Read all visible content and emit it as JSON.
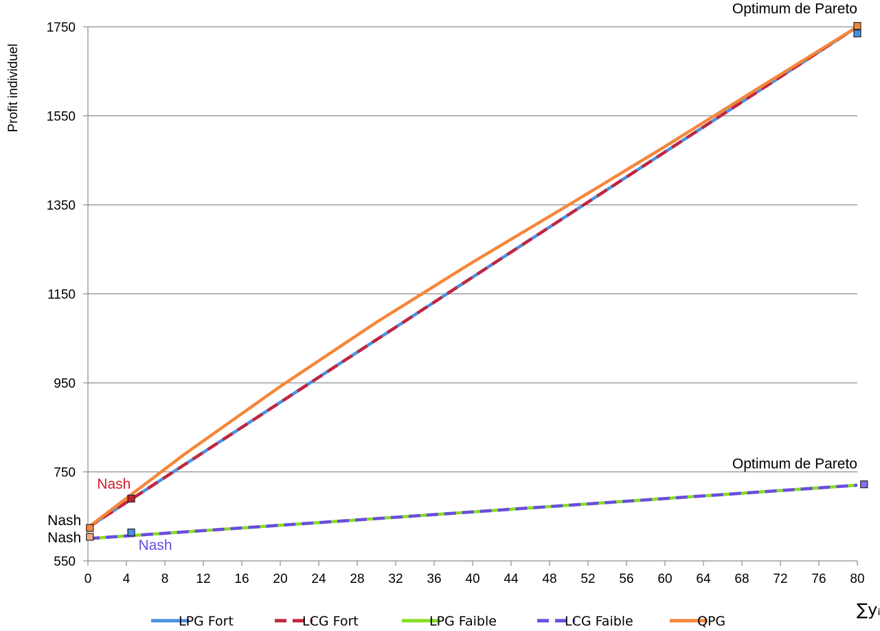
{
  "chart_data": {
    "type": "line",
    "ylabel": "Profit individuel",
    "xlabel": "∑yᵢ",
    "xlim": [
      0,
      80
    ],
    "ylim": [
      550,
      1750
    ],
    "x_ticks": [
      "0",
      "4",
      "8",
      "12",
      "16",
      "20",
      "24",
      "28",
      "32",
      "36",
      "40",
      "44",
      "48",
      "52",
      "56",
      "60",
      "64",
      "68",
      "72",
      "76",
      "80"
    ],
    "y_ticks": [
      "550",
      "750",
      "950",
      "1150",
      "1350",
      "1550",
      "1750"
    ],
    "grid": "horizontal",
    "legend_position": "bottom",
    "series": [
      {
        "name": "LPG Fort",
        "color": "#4a90e2",
        "dash": "solid",
        "x": [
          0,
          80
        ],
        "y": [
          625,
          1750
        ]
      },
      {
        "name": "LCG Fort",
        "color": "#c0263f",
        "dash": "dashed",
        "x": [
          0,
          80
        ],
        "y": [
          625,
          1750
        ]
      },
      {
        "name": "LPG Faible",
        "color": "#88dd22",
        "dash": "solid",
        "x": [
          0,
          80
        ],
        "y": [
          600,
          720
        ]
      },
      {
        "name": "LCG Faible",
        "color": "#6a4ce0",
        "dash": "dashed",
        "x": [
          0,
          80
        ],
        "y": [
          600,
          720
        ]
      },
      {
        "name": "QPG",
        "color": "#f5873a",
        "dash": "solid",
        "x": [
          0,
          10,
          20,
          30,
          40,
          50,
          60,
          70,
          80
        ],
        "y": [
          625,
          789,
          942,
          1086,
          1221,
          1350,
          1481,
          1616,
          1750
        ]
      }
    ],
    "markers": [
      {
        "x": 4.5,
        "y": 690,
        "color": "#cc1f2e"
      },
      {
        "x": 4.5,
        "y": 614,
        "color": "#4a90e2"
      },
      {
        "x": 0.2,
        "y": 624,
        "color": "#f5873a"
      },
      {
        "x": 0.2,
        "y": 604,
        "color": "#f0a98a"
      },
      {
        "x": 80,
        "y": 1752,
        "color": "#f5873a"
      },
      {
        "x": 80,
        "y": 1735,
        "color": "#4a90e2"
      },
      {
        "x": 80.7,
        "y": 722,
        "color": "#8c6ff0"
      }
    ],
    "annotations": [
      {
        "text": "Optimum de Pareto",
        "x": 80,
        "y": 1780,
        "color": "#000000",
        "anchor": "end"
      },
      {
        "text": "Optimum de Pareto",
        "x": 80,
        "y": 758,
        "color": "#000000",
        "anchor": "end"
      },
      {
        "text": "Nash",
        "x": 2.7,
        "y": 712,
        "color": "#cc1f2e",
        "anchor": "middle"
      },
      {
        "text": "Nash",
        "x": -0.7,
        "y": 630,
        "color": "#000000",
        "anchor": "end"
      },
      {
        "text": "Nash",
        "x": -0.7,
        "y": 592,
        "color": "#000000",
        "anchor": "end"
      },
      {
        "text": "Nash",
        "x": 7,
        "y": 575,
        "color": "#6a4ce0",
        "anchor": "middle"
      }
    ]
  }
}
